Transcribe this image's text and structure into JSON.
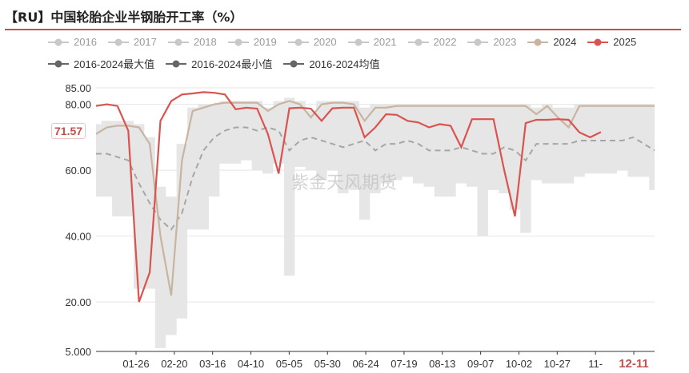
{
  "title": "【RU】中国轮胎企业半钢胎开工率（%）",
  "watermark": "紫金天风期货",
  "current_value_label": "71.57",
  "colors": {
    "accent": "#c0504d",
    "y2024": "#c8b4a0",
    "y2025": "#d9534f",
    "inactive": "#c8c8c8",
    "band": "#e6e6e6",
    "avg": "#a6a6a6"
  },
  "legend": {
    "row1": [
      {
        "label": "2016",
        "active": false
      },
      {
        "label": "2017",
        "active": false
      },
      {
        "label": "2018",
        "active": false
      },
      {
        "label": "2019",
        "active": false
      },
      {
        "label": "2020",
        "active": false
      },
      {
        "label": "2021",
        "active": false
      },
      {
        "label": "2022",
        "active": false
      },
      {
        "label": "2023",
        "active": false
      },
      {
        "label": "2024",
        "active": true
      },
      {
        "label": "2025",
        "active": true
      }
    ],
    "row2": [
      {
        "label": "2016-2024最大值"
      },
      {
        "label": "2016-2024最小值"
      },
      {
        "label": "2016-2024均值"
      }
    ]
  },
  "chart_data": {
    "type": "line",
    "x_tick_labels": [
      "01-26",
      "02-20",
      "03-16",
      "04-10",
      "05-05",
      "05-30",
      "06-24",
      "07-19",
      "08-13",
      "09-07",
      "10-02",
      "10-27",
      "11-",
      "12-11"
    ],
    "highlight_tick": "12-11",
    "y_ticks": [
      {
        "label": "85.00",
        "value": 85
      },
      {
        "label": "80.00",
        "value": 80
      },
      {
        "label": "60.00",
        "value": 60
      },
      {
        "label": "40.00",
        "value": 40
      },
      {
        "label": "20.00",
        "value": 20
      },
      {
        "label": "5.000",
        "value": 5
      }
    ],
    "ylim": [
      5,
      85
    ],
    "x_count": 53,
    "series": [
      {
        "name": "2024",
        "values": [
          71,
          73,
          73.5,
          73.5,
          73,
          68,
          40,
          22,
          63,
          78,
          79,
          80,
          80.5,
          80.5,
          80.5,
          80.5,
          78,
          80,
          81,
          80,
          76,
          80,
          80.5,
          80.5,
          80,
          75,
          79,
          79,
          79.5,
          79.5,
          79.5,
          79.5,
          79.5,
          79.5,
          79.5,
          79.5,
          79.5,
          79.5,
          79.5,
          79.5,
          79.5,
          77,
          79.5,
          76,
          73,
          79.5,
          79.5,
          79.5,
          79.5,
          79.5,
          79.5,
          79.5,
          79.5
        ]
      },
      {
        "name": "2025",
        "values": [
          79.5,
          80,
          79.5,
          72,
          20,
          29,
          75,
          81,
          83,
          83.3,
          83.7,
          83.5,
          83,
          78.5,
          79,
          78.7,
          71,
          59,
          78.8,
          79,
          78.7,
          75,
          78.8,
          79,
          79,
          70,
          73,
          77,
          76.8,
          75,
          74.5,
          73,
          74,
          73.5,
          67,
          75.5,
          75.5,
          75.5,
          60,
          46,
          74.3,
          75.3,
          75.3,
          75.5,
          75.3,
          71.5,
          70,
          71.57
        ]
      },
      {
        "name": "2016-2024均值",
        "values": [
          65,
          65,
          64,
          63,
          56,
          50,
          45,
          42,
          47,
          58,
          66,
          70,
          72,
          73,
          73,
          72,
          73,
          72,
          66,
          69,
          70,
          69,
          68,
          67,
          68,
          69,
          66,
          68,
          68,
          69,
          68,
          66,
          66,
          66,
          67,
          66,
          65,
          65,
          67,
          66,
          63,
          68,
          68,
          68,
          68,
          69,
          69,
          69,
          69,
          69,
          70,
          68,
          66
        ]
      },
      {
        "name": "2016-2024最大值",
        "values": [
          74,
          75,
          75,
          75,
          74,
          70,
          55,
          52,
          68,
          79,
          80,
          80,
          81,
          81,
          81,
          81,
          79,
          81,
          82,
          81,
          78,
          81,
          81,
          81,
          81,
          79,
          80,
          80,
          80,
          80,
          80,
          80,
          80,
          80,
          80,
          80,
          80,
          80,
          80,
          80,
          80,
          79,
          80,
          79,
          79,
          80,
          80,
          80,
          80,
          80,
          80,
          80,
          80
        ]
      },
      {
        "name": "2016-2024最小值",
        "values": [
          52,
          52,
          46,
          46,
          24,
          24,
          6,
          10,
          15,
          42,
          42,
          52,
          62,
          62,
          63,
          60,
          59,
          62,
          28,
          61,
          60,
          57,
          60,
          53,
          54,
          45,
          53,
          56,
          57,
          58,
          56,
          55,
          52,
          52,
          56,
          55,
          40,
          54,
          53,
          48,
          41,
          57,
          56,
          56,
          56,
          58,
          59,
          59,
          59,
          60,
          58,
          58,
          54
        ]
      }
    ]
  }
}
